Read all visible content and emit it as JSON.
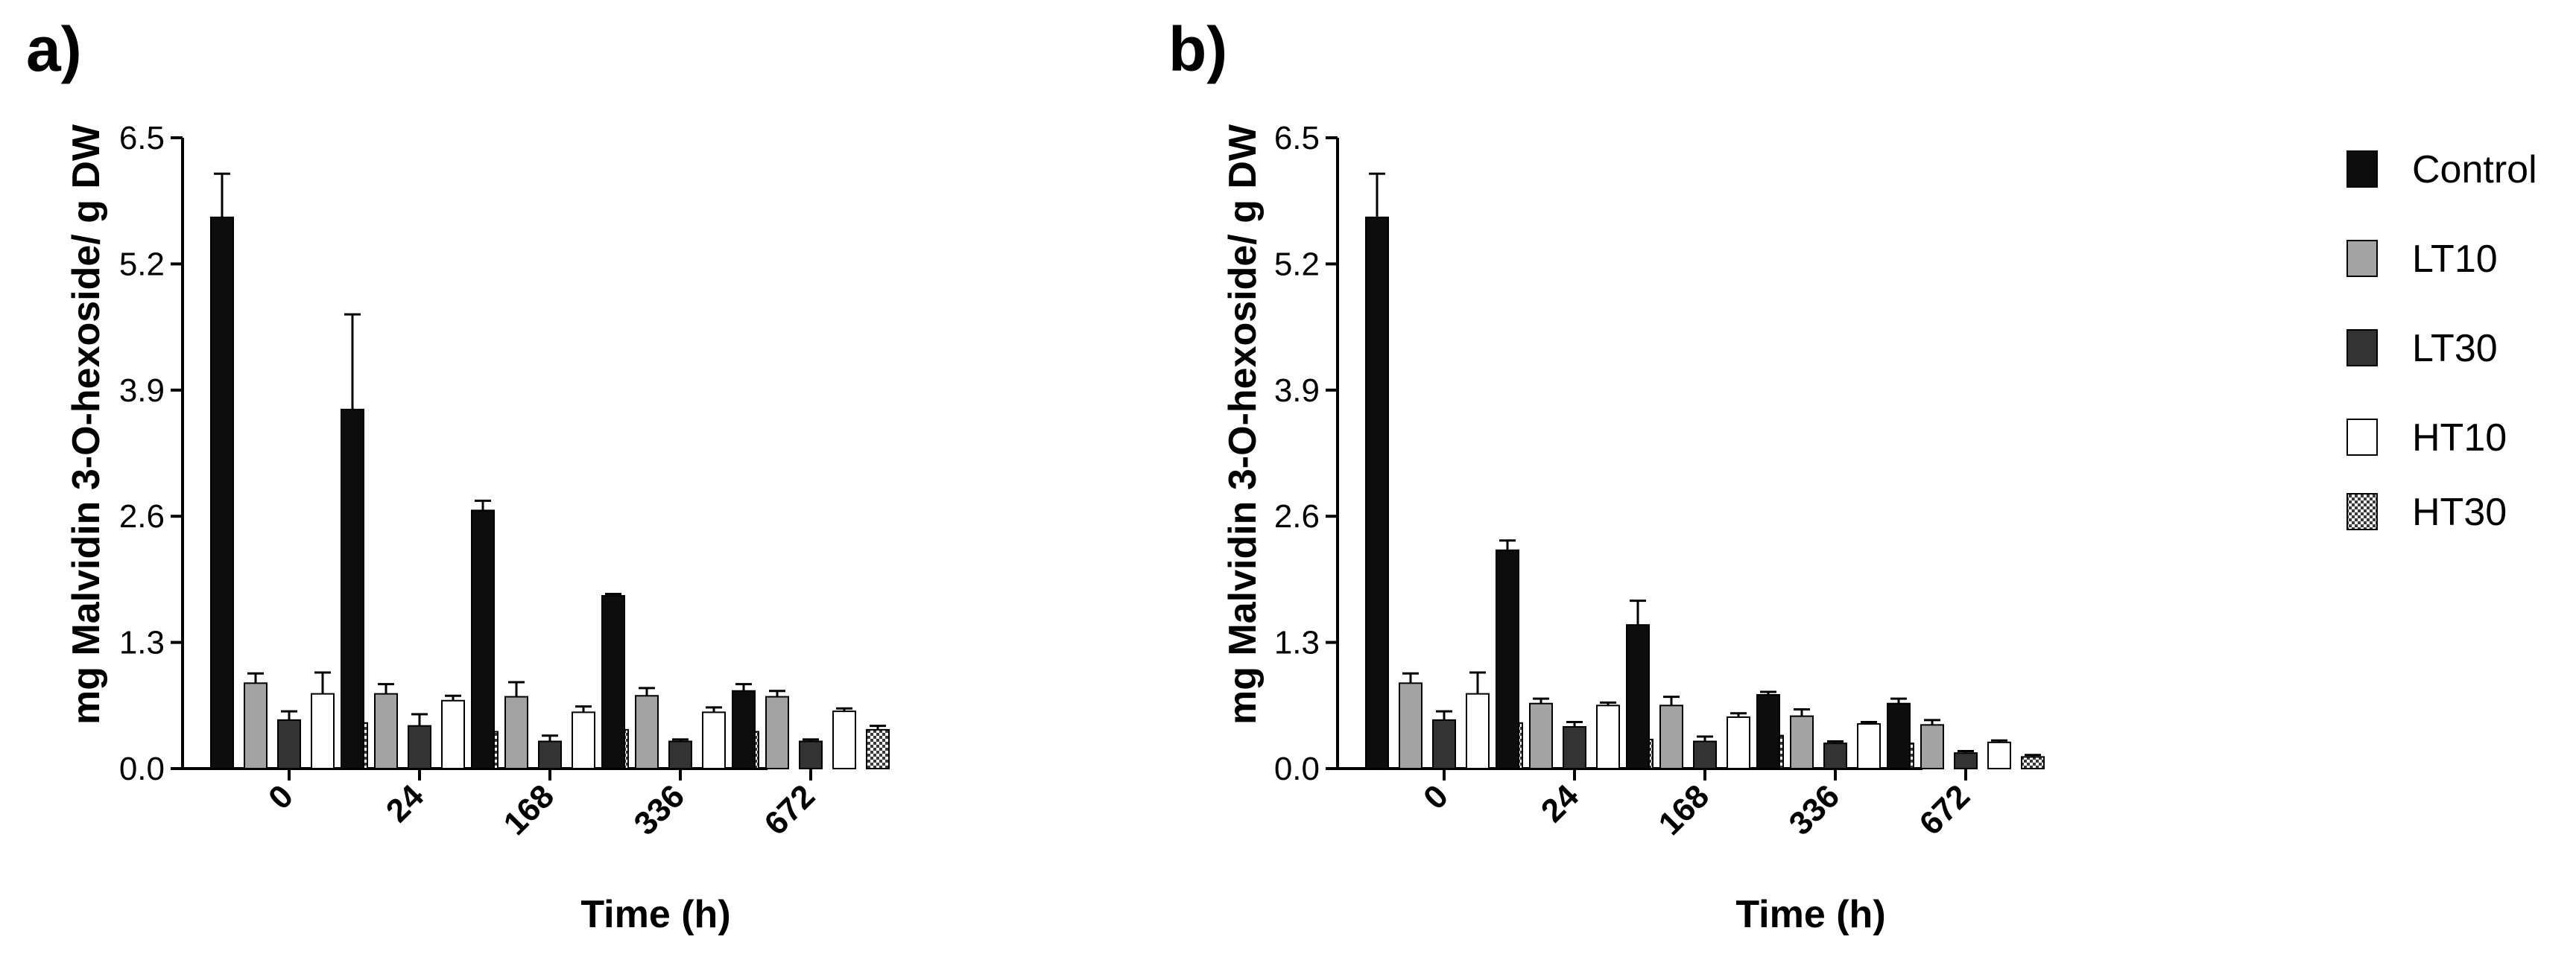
{
  "colors": {
    "Control": "#0d0d0d",
    "LT10": "#a3a3a3",
    "LT30": "#333333",
    "HT10": "#ffffff",
    "HT30": "checkered"
  },
  "legend": {
    "position": "right",
    "items": [
      "Control",
      "LT10",
      "LT30",
      "HT10",
      "HT30"
    ]
  },
  "chart_data": [
    {
      "type": "bar",
      "panel_label": "a)",
      "xlabel": "Time (h)",
      "ylabel": "mg Malvidin 3-O-hexoside/ g DW",
      "ylim": [
        0,
        6.5
      ],
      "yticks": [
        "0.0",
        "1.3",
        "2.6",
        "3.9",
        "5.2",
        "6.5"
      ],
      "categories": [
        "0",
        "24",
        "168",
        "336",
        "672"
      ],
      "series": [
        {
          "name": "Control",
          "values": [
            5.68,
            3.7,
            2.66,
            1.78,
            0.8
          ],
          "errors": [
            0.45,
            0.98,
            0.1,
            0.02,
            0.07
          ]
        },
        {
          "name": "LT10",
          "values": [
            0.88,
            0.77,
            0.74,
            0.75,
            0.74
          ],
          "errors": [
            0.1,
            0.1,
            0.15,
            0.08,
            0.06
          ]
        },
        {
          "name": "LT30",
          "values": [
            0.5,
            0.44,
            0.28,
            0.28,
            0.28
          ],
          "errors": [
            0.09,
            0.12,
            0.06,
            0.02,
            0.02
          ]
        },
        {
          "name": "HT10",
          "values": [
            0.77,
            0.7,
            0.58,
            0.58,
            0.59
          ],
          "errors": [
            0.22,
            0.05,
            0.06,
            0.05,
            0.03
          ]
        },
        {
          "name": "HT30",
          "values": [
            0.47,
            0.38,
            0.4,
            0.38,
            0.4
          ],
          "errors": [
            0.09,
            0.05,
            0.04,
            0.05,
            0.04
          ]
        }
      ]
    },
    {
      "type": "bar",
      "panel_label": "b)",
      "xlabel": "Time (h)",
      "ylabel": "mg Malvidin 3-O-hexoside/ g DW",
      "ylim": [
        0,
        6.5
      ],
      "yticks": [
        "0.0",
        "1.3",
        "2.6",
        "3.9",
        "5.2",
        "6.5"
      ],
      "categories": [
        "0",
        "24",
        "168",
        "336",
        "672"
      ],
      "series": [
        {
          "name": "Control",
          "values": [
            5.68,
            2.25,
            1.48,
            0.76,
            0.67
          ],
          "errors": [
            0.45,
            0.1,
            0.25,
            0.03,
            0.05
          ]
        },
        {
          "name": "LT10",
          "values": [
            0.88,
            0.67,
            0.65,
            0.54,
            0.45
          ],
          "errors": [
            0.1,
            0.05,
            0.09,
            0.07,
            0.05
          ]
        },
        {
          "name": "LT30",
          "values": [
            0.5,
            0.43,
            0.28,
            0.26,
            0.16
          ],
          "errors": [
            0.09,
            0.05,
            0.05,
            0.02,
            0.02
          ]
        },
        {
          "name": "HT10",
          "values": [
            0.77,
            0.65,
            0.53,
            0.46,
            0.27
          ],
          "errors": [
            0.22,
            0.03,
            0.04,
            0.02,
            0.02
          ]
        },
        {
          "name": "HT30",
          "values": [
            0.47,
            0.3,
            0.34,
            0.26,
            0.12
          ],
          "errors": [
            0.09,
            0.08,
            0.06,
            0.02,
            0.02
          ]
        }
      ]
    }
  ]
}
